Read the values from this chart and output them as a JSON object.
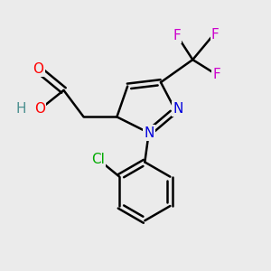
{
  "background_color": "#ebebeb",
  "bond_color": "#000000",
  "bond_width": 1.8,
  "atom_colors": {
    "O": "#ff0000",
    "N": "#0000dd",
    "Cl": "#00aa00",
    "F": "#cc00cc",
    "H_acid": "#4a8f8f",
    "C": "#000000"
  },
  "font_size_atoms": 11,
  "figsize": [
    3.0,
    3.0
  ],
  "dpi": 100
}
